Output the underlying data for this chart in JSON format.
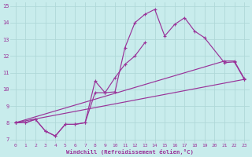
{
  "background_color": "#c8ecec",
  "grid_color": "#b0d8d8",
  "line_color": "#993399",
  "xlabel": "Windchill (Refroidissement éolien,°C)",
  "xlim_min": -0.5,
  "xlim_max": 23.5,
  "ylim_min": 6.8,
  "ylim_max": 15.2,
  "xticks": [
    0,
    1,
    2,
    3,
    4,
    5,
    6,
    7,
    8,
    9,
    10,
    11,
    12,
    13,
    14,
    15,
    16,
    17,
    18,
    19,
    20,
    21,
    22,
    23
  ],
  "yticks": [
    7,
    8,
    9,
    10,
    11,
    12,
    13,
    14,
    15
  ],
  "series1_x": [
    0,
    1,
    2,
    3,
    4,
    5,
    6,
    7,
    8,
    9,
    10,
    11,
    12,
    13,
    14,
    15,
    16,
    17,
    18,
    19,
    21,
    22,
    23
  ],
  "series1_y": [
    8.0,
    8.0,
    8.2,
    7.5,
    7.2,
    7.9,
    7.9,
    8.0,
    10.5,
    9.8,
    9.85,
    12.5,
    14.0,
    14.5,
    14.8,
    13.2,
    13.9,
    14.3,
    13.5,
    13.1,
    11.6,
    11.65,
    10.6
  ],
  "series2_x": [
    0,
    1,
    2,
    3,
    4,
    5,
    6,
    7,
    8,
    9,
    10,
    11,
    12,
    13
  ],
  "series2_y": [
    8.0,
    8.0,
    8.2,
    7.5,
    7.2,
    7.9,
    7.9,
    8.0,
    9.8,
    9.8,
    10.7,
    11.5,
    12.0,
    12.8
  ],
  "series3_x": [
    0,
    21,
    22,
    23
  ],
  "series3_y": [
    8.0,
    11.7,
    11.7,
    10.65
  ],
  "series4_x": [
    0,
    23
  ],
  "series4_y": [
    8.0,
    10.6
  ]
}
